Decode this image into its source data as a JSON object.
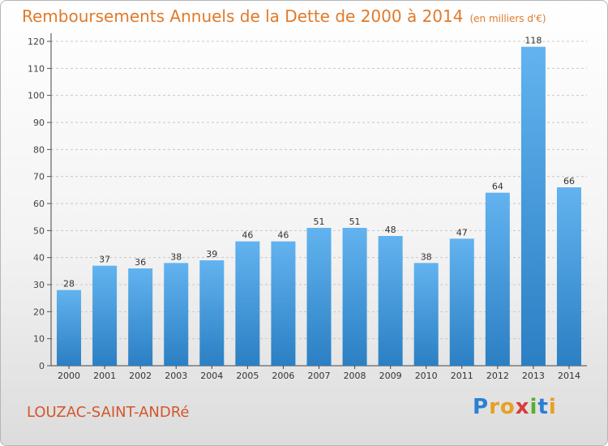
{
  "title": "Remboursements Annuels de la Dette de 2000 à 2014",
  "unit_note": "(en milliers d'€)",
  "commune": "LOUZAC-SAINT-ANDRé",
  "logo": {
    "letters": [
      "P",
      "r",
      "o",
      "x",
      "i",
      "t",
      "i"
    ],
    "colors": [
      "#2a7fd4",
      "#e8a020",
      "#e8a020",
      "#d83c3c",
      "#5aae2e",
      "#2a7fd4",
      "#e8a020"
    ]
  },
  "colors": {
    "bar_light": "#62b3ef",
    "bar_dark": "#2b7fc3",
    "title": "#e07a2a",
    "commune": "#d2572c",
    "grid": "#c8c8c8"
  },
  "chart_data": {
    "type": "bar",
    "categories": [
      "2000",
      "2001",
      "2002",
      "2003",
      "2004",
      "2005",
      "2006",
      "2007",
      "2008",
      "2009",
      "2010",
      "2011",
      "2012",
      "2013",
      "2014"
    ],
    "values": [
      28,
      37,
      36,
      38,
      39,
      46,
      46,
      51,
      51,
      48,
      38,
      47,
      64,
      118,
      66
    ],
    "data_labels": [
      "28",
      "37",
      "36",
      "38",
      "39",
      "46",
      "46",
      "51",
      "51",
      "48",
      "38",
      "47",
      "64",
      "118",
      "66"
    ],
    "y_ticks": [
      "0",
      "10",
      "20",
      "30",
      "40",
      "50",
      "60",
      "70",
      "80",
      "90",
      "100",
      "110",
      "120"
    ],
    "ylim": [
      0,
      120
    ],
    "grid": true,
    "title": "Remboursements Annuels de la Dette de 2000 à 2014",
    "xlabel": "",
    "ylabel": ""
  }
}
